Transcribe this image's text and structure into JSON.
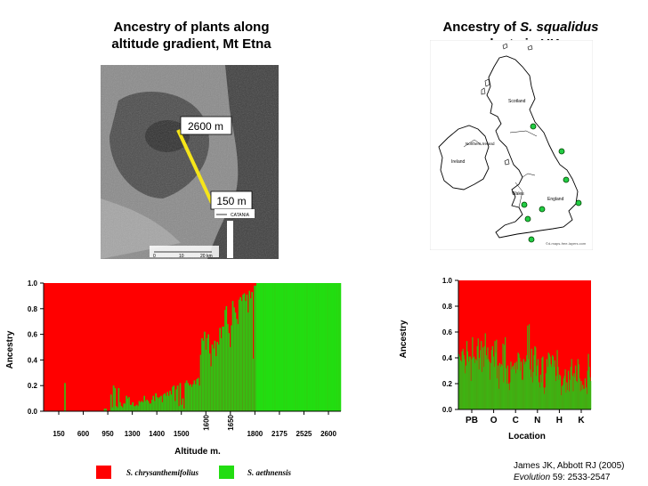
{
  "left_title": {
    "line1": "Ancestry of plants along",
    "line2": "altitude gradient, Mt Etna"
  },
  "right_title": {
    "prefix": "Ancestry of ",
    "species": "S. squalidus",
    "line2": "plants in UK"
  },
  "etna_photo": {
    "label_top": "2600 m",
    "label_bottom": "150 m",
    "place_label": "CATANIA",
    "scale_labels": [
      "0",
      "10",
      "20 km"
    ]
  },
  "uk_map": {
    "regions": [
      "Scotland",
      "Northern Ireland",
      "Ireland",
      "Wales",
      "England"
    ],
    "credit": "©d-maps-free-layers.com",
    "site_count": 8
  },
  "colors": {
    "red": "#ff0000",
    "green": "#22dd11",
    "dark": "#8a4a1a"
  },
  "chart_data": [
    {
      "type": "bar",
      "stacked": true,
      "ylabel": "Ancestry",
      "xlabel": "Altitude m.",
      "ylim": [
        0,
        1
      ],
      "yticks": [
        "0.0",
        "0.2",
        "0.4",
        "0.6",
        "0.8",
        "1.0"
      ],
      "xtick_labels": [
        "150",
        "600",
        "950",
        "1300",
        "1400",
        "1500",
        "1600",
        "1650",
        "1800",
        "2175",
        "2525",
        "2600"
      ],
      "rotated_ticks": [
        "1600",
        "1650"
      ],
      "series": [
        {
          "name": "S. chrysanthemifolius",
          "color": "#ff0000"
        },
        {
          "name": "S. aethnensis",
          "color": "#22dd11"
        }
      ],
      "values": [
        0,
        0,
        0,
        0,
        0,
        0,
        0,
        0,
        0,
        0,
        0,
        0,
        0,
        0,
        0,
        0,
        0.22,
        0,
        0,
        0,
        0,
        0,
        0,
        0,
        0,
        0,
        0,
        0,
        0,
        0,
        0,
        0,
        0,
        0,
        0,
        0,
        0,
        0,
        0,
        0,
        0,
        0,
        0,
        0,
        0,
        0,
        0,
        0.02,
        0.02,
        0,
        0,
        0,
        0.13,
        0.03,
        0.2,
        0.18,
        0.04,
        0.03,
        0.18,
        0.07,
        0.04,
        0.03,
        0.06,
        0.06,
        0.12,
        0.1,
        0.11,
        0.05,
        0.05,
        0.07,
        0.04,
        0.04,
        0.05,
        0.04,
        0.08,
        0.07,
        0.08,
        0.07,
        0.12,
        0.08,
        0.09,
        0.08,
        0.06,
        0.06,
        0.09,
        0.12,
        0.08,
        0.14,
        0.11,
        0.1,
        0.11,
        0.12,
        0.07,
        0.13,
        0.14,
        0.12,
        0.15,
        0.12,
        0.16,
        0.13,
        0.19,
        0.2,
        0.08,
        0.17,
        0.2,
        0.04,
        0.22,
        0.05,
        0.1,
        0.02,
        0.22,
        0.24,
        0.22,
        0.2,
        0.21,
        0.19,
        0.21,
        0.24,
        0.21,
        0.25,
        0.26,
        0.2,
        0.44,
        0.57,
        0.55,
        0.62,
        0.48,
        0.57,
        0.6,
        0.45,
        0.35,
        0.52,
        0.49,
        0.55,
        0.43,
        0.54,
        0.52,
        0.65,
        0.57,
        0.66,
        0.66,
        0.79,
        0.82,
        0.68,
        0.61,
        0.5,
        0.67,
        0.86,
        0.81,
        0.77,
        0.72,
        0.68,
        0.87,
        0.89,
        0.86,
        0.91,
        0.92,
        0.86,
        0.91,
        0.77,
        0.94,
        0.88,
        0.93,
        0.41,
        0.98,
        0.98,
        1,
        1,
        1,
        1,
        1,
        1,
        1,
        1,
        1,
        1,
        1,
        1,
        1,
        1,
        1,
        1,
        1,
        1,
        1,
        1,
        1,
        1,
        1,
        1,
        1,
        1,
        1,
        1,
        1,
        1,
        1,
        1,
        1,
        1,
        1,
        1,
        1,
        1,
        1,
        1,
        1,
        1,
        1,
        1,
        1,
        1,
        1,
        1,
        1,
        1,
        1,
        1,
        1,
        1,
        1,
        1,
        1,
        1,
        1,
        1,
        1,
        1,
        1,
        1,
        1,
        1
      ]
    },
    {
      "type": "bar",
      "stacked": true,
      "ylabel": "Ancestry",
      "xlabel": "Location",
      "ylim": [
        0,
        1
      ],
      "yticks": [
        "0.0",
        "0.2",
        "0.4",
        "0.6",
        "0.8",
        "1.0"
      ],
      "xtick_labels": [
        "PB",
        "O",
        "C",
        "N",
        "H",
        "K"
      ],
      "series": [
        {
          "name": "S. chrysanthemifolius",
          "color": "#ff0000"
        },
        {
          "name": "S. aethnensis",
          "color": "#22dd11"
        }
      ],
      "values": [
        0.43,
        0.41,
        0.38,
        0.37,
        0.45,
        0.47,
        0.42,
        0.39,
        0.28,
        0.34,
        0.53,
        0.45,
        0.37,
        0.41,
        0.41,
        0.22,
        0.39,
        0.56,
        0.4,
        0.41,
        0.36,
        0.39,
        0.38,
        0.49,
        0.55,
        0.31,
        0.4,
        0.46,
        0.53,
        0.29,
        0.48,
        0.33,
        0.49,
        0.59,
        0.42,
        0.39,
        0.48,
        0.39,
        0.37,
        0.23,
        0.36,
        0.46,
        0.49,
        0.41,
        0.33,
        0.53,
        0.44,
        0.54,
        0.24,
        0.34,
        0.16,
        0.36,
        0.33,
        0.35,
        0.34,
        0.51,
        0.21,
        0.5,
        0.56,
        0.32,
        0.2,
        0.34,
        0.2,
        0.15,
        0.21,
        0.37,
        0.31,
        0.33,
        0.34,
        0.31,
        0.36,
        0.28,
        0.37,
        0.31,
        0.44,
        0.43,
        0.4,
        0.3,
        0.37,
        0.23,
        0.23,
        0.39,
        0.35,
        0.37,
        0.37,
        0.42,
        0.65,
        0.39,
        0.66,
        0.31,
        0.25,
        0.47,
        0.21,
        0.29,
        0.42,
        0.49,
        0.48,
        0.26,
        0.34,
        0.39,
        0.21,
        0.17,
        0.27,
        0.21,
        0.4,
        0.41,
        0.17,
        0.12,
        0.17,
        0.28,
        0.39,
        0.33,
        0.44,
        0.43,
        0.41,
        0.35,
        0.33,
        0.42,
        0.41,
        0.33,
        0.38,
        0.22,
        0.26,
        0.46,
        0.33,
        0.23,
        0.27,
        0.26,
        0.11,
        0.18,
        0.19,
        0.24,
        0.26,
        0.31,
        0.13,
        0.21,
        0.15,
        0.3,
        0.14,
        0.23,
        0.33,
        0.39,
        0.26,
        0.14,
        0.28,
        0.25,
        0.34,
        0.22,
        0.21,
        0.39,
        0.35,
        0.24,
        0.14,
        0.22,
        0.15,
        0.19,
        0.16,
        0.16,
        0.24,
        0.17,
        0.12,
        0.3,
        0.43,
        0.33,
        0.25,
        0.22
      ]
    }
  ],
  "legend": {
    "items": [
      {
        "label": "S. chrysanthemifolius",
        "color": "#ff0000"
      },
      {
        "label": "S. aethnensis",
        "color": "#22dd11"
      }
    ]
  },
  "citation": {
    "line1": "James JK, Abbott RJ (2005)",
    "journal": "Evolution",
    "ref": " 59: 2533-2547"
  }
}
